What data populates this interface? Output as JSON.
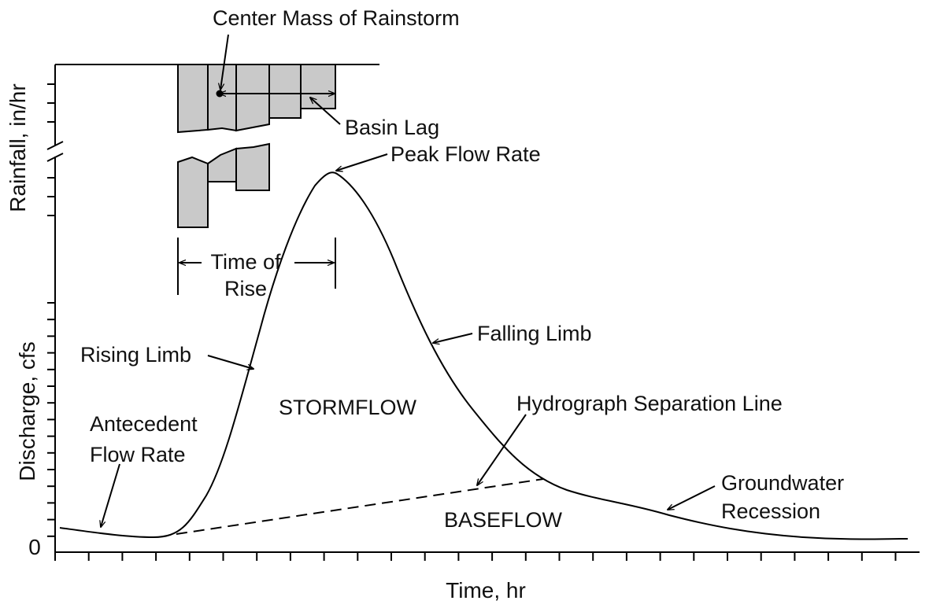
{
  "labels": {
    "center_mass": "Center Mass of Rainstorm",
    "basin_lag": "Basin Lag",
    "peak_flow": "Peak Flow Rate",
    "time_of_rise_1": "Time of",
    "time_of_rise_2": "Rise",
    "rising_limb": "Rising Limb",
    "falling_limb": "Falling Limb",
    "stormflow": "STORMFLOW",
    "hydrograph_sep": "Hydrograph Separation Line",
    "antecedent_1": "Antecedent",
    "antecedent_2": "Flow Rate",
    "baseflow": "BASEFLOW",
    "groundwater_1": "Groundwater",
    "groundwater_2": "Recession"
  },
  "axes": {
    "x_title": "Time, hr",
    "y_discharge_title": "Discharge, cfs",
    "y_rainfall_title": "Rainfall, in/hr",
    "zero_label": "0"
  }
}
